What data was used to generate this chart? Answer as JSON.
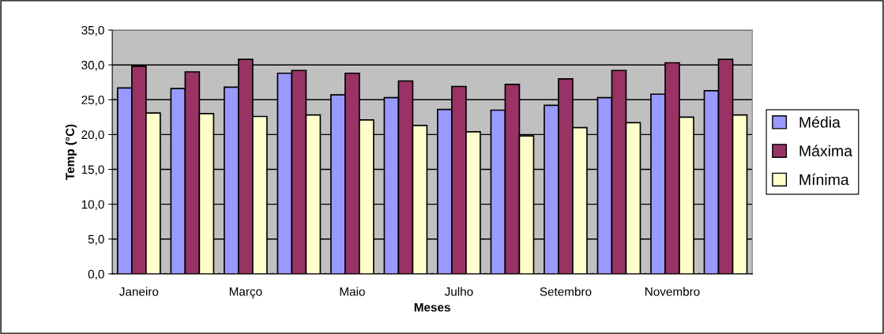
{
  "chart_data": {
    "type": "bar",
    "xlabel": "Meses",
    "ylabel": "Temp (°C)",
    "categories": [
      "Janeiro",
      null,
      "Março",
      null,
      "Maio",
      null,
      "Julho",
      null,
      "Setembro",
      null,
      "Novembro",
      null
    ],
    "series": [
      {
        "name": "Média",
        "color": "#9999ff",
        "values": [
          26.7,
          26.6,
          26.8,
          28.8,
          25.7,
          25.3,
          23.6,
          23.5,
          24.2,
          25.3,
          25.8,
          26.3
        ]
      },
      {
        "name": "Máxima",
        "color": "#993366",
        "values": [
          29.8,
          29.0,
          30.8,
          29.2,
          28.8,
          27.7,
          26.9,
          27.2,
          28.0,
          29.2,
          30.3,
          30.8
        ]
      },
      {
        "name": "Mínima",
        "color": "#ffffcc",
        "values": [
          23.1,
          23.0,
          22.6,
          22.8,
          22.1,
          21.3,
          20.4,
          19.8,
          21.0,
          21.7,
          22.5,
          22.8
        ]
      }
    ],
    "ylim": [
      0,
      35
    ],
    "yticks": [
      {
        "value": 0,
        "label": "0,0"
      },
      {
        "value": 5,
        "label": "5,0"
      },
      {
        "value": 10,
        "label": "10,0"
      },
      {
        "value": 15,
        "label": "15,0"
      },
      {
        "value": 20,
        "label": "20,0"
      },
      {
        "value": 25,
        "label": "25,0"
      },
      {
        "value": 30,
        "label": "30,0"
      },
      {
        "value": 35,
        "label": "35,0"
      }
    ],
    "grid": "y",
    "legend": "right"
  }
}
